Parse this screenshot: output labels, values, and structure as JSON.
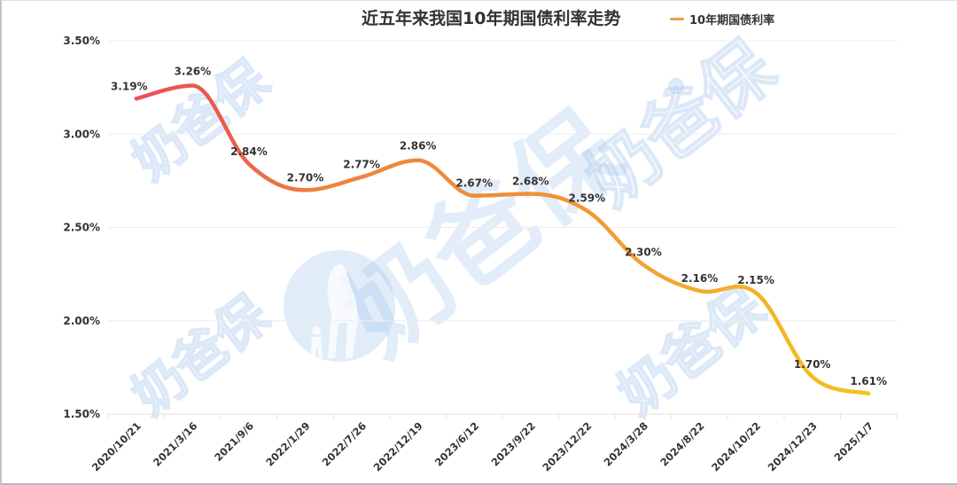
{
  "chart_data": {
    "type": "line",
    "title": "近五年来我国10年期国债利率走势",
    "xlabel": "",
    "ylabel": "",
    "legend": [
      {
        "name": "10年期国债利率",
        "color": "#f0a040"
      }
    ],
    "legend_position": "top-right",
    "grid": true,
    "ylim": [
      1.5,
      3.5
    ],
    "yticks": [
      "3.50%",
      "3.00%",
      "2.50%",
      "2.00%",
      "1.50%"
    ],
    "categories": [
      "2020/10/21",
      "2021/3/16",
      "2021/9/6",
      "2022/1/29",
      "2022/7/26",
      "2022/12/19",
      "2023/6/12",
      "2023/9/22",
      "2023/12/22",
      "2024/3/28",
      "2024/8/22",
      "2024/10/22",
      "2024/12/23",
      "2025/1/7"
    ],
    "series": [
      {
        "name": "10年期国债利率",
        "values": [
          3.19,
          3.26,
          2.84,
          2.7,
          2.77,
          2.86,
          2.67,
          2.68,
          2.59,
          2.3,
          2.16,
          2.15,
          1.7,
          1.61
        ],
        "labels": [
          "3.19%",
          "3.26%",
          "2.84%",
          "2.70%",
          "2.77%",
          "2.86%",
          "2.67%",
          "2.68%",
          "2.59%",
          "2.30%",
          "2.16%",
          "2.15%",
          "1.70%",
          "1.61%"
        ],
        "gradient": [
          "#e8505a",
          "#f0883c",
          "#f5c21a"
        ]
      }
    ]
  },
  "header": {
    "title": "近五年来我国10年期国债利率走势",
    "legend_label": "10年期国债利率"
  },
  "watermark": {
    "text": "奶爸保",
    "mark": "®"
  }
}
